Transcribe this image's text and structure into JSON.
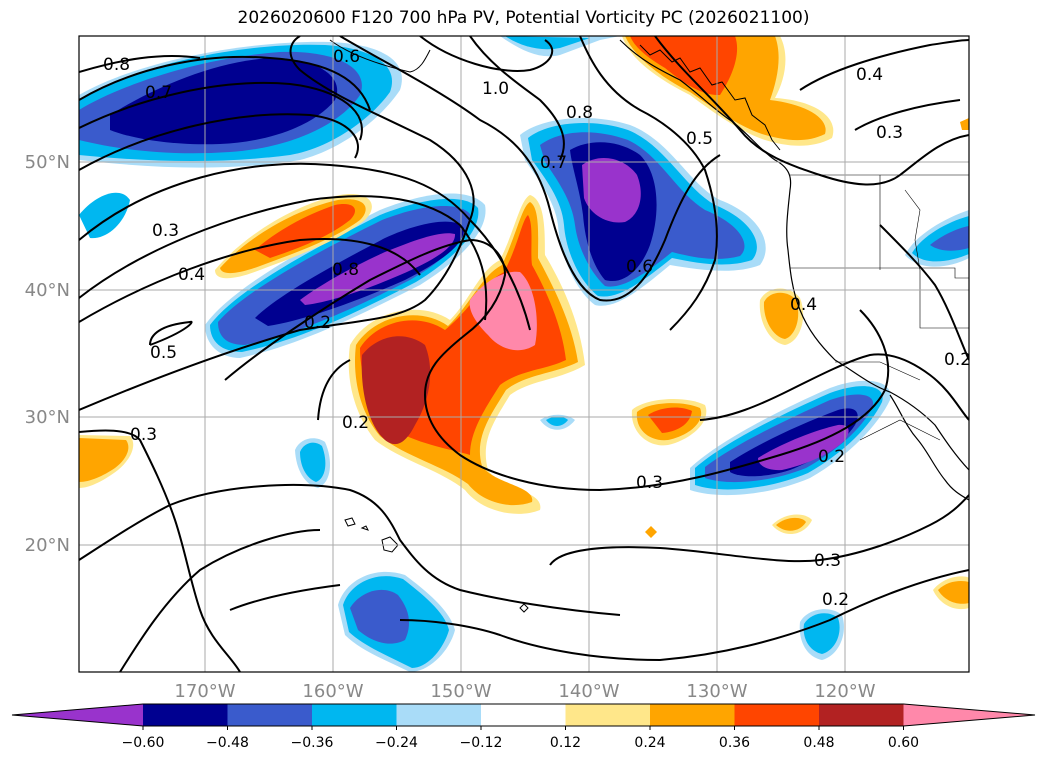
{
  "title": "2026020600 F120 700 hPa PV, Potential Vorticity PC (2026021100)",
  "map": {
    "lat_labels": [
      "50°N",
      "40°N",
      "30°N",
      "20°N"
    ],
    "lon_labels": [
      "170°W",
      "160°W",
      "150°W",
      "140°W",
      "130°W",
      "120°W"
    ],
    "contour_labels": [
      "0.8",
      "0.7",
      "0.6",
      "1.0",
      "0.8",
      "0.5",
      "0.4",
      "0.3",
      "0.7",
      "0.3",
      "0.4",
      "0.8",
      "0.6",
      "0.2",
      "0.5",
      "0.4",
      "0.2",
      "0.3",
      "0.2",
      "0.3",
      "0.2",
      "0.3",
      "0.2"
    ]
  },
  "colorbar": {
    "ticks": [
      "−0.60",
      "−0.48",
      "−0.36",
      "−0.24",
      "−0.12",
      "0.12",
      "0.24",
      "0.36",
      "0.48",
      "0.60"
    ],
    "colors": [
      "#9933cc",
      "#000090",
      "#3a5bcc",
      "#00b7f0",
      "#a9dcf8",
      "#ffffff",
      "#ffe78a",
      "#ffa500",
      "#ff4500",
      "#b22222",
      "#ff88aa"
    ]
  }
}
